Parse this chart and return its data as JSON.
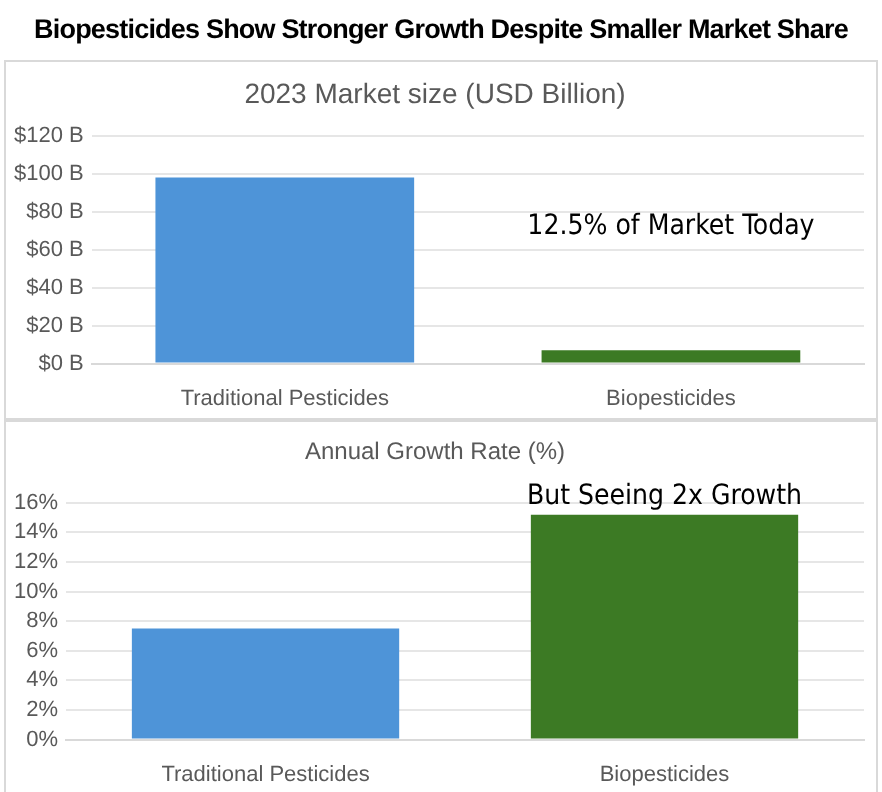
{
  "chart_data": [
    {
      "type": "bar",
      "title": "Biopesticides Show Stronger Growth Despite Smaller Market Share",
      "subtitle": "2023 Market size (USD Billion)",
      "categories": [
        "Traditional Pesticides",
        "Biopesticides"
      ],
      "values": [
        98,
        7
      ],
      "colors": [
        "#4e94d8",
        "#3c7a24"
      ],
      "ylim": [
        0,
        120
      ],
      "yticks": [
        {
          "value": 0,
          "label": "$0 B"
        },
        {
          "value": 20,
          "label": "$20 B"
        },
        {
          "value": 40,
          "label": "$40 B"
        },
        {
          "value": 60,
          "label": "$60 B"
        },
        {
          "value": 80,
          "label": "$80 B"
        },
        {
          "value": 100,
          "label": "$100 B"
        },
        {
          "value": 120,
          "label": "$120 B"
        }
      ],
      "grid": "y",
      "legend": false,
      "annotations": [
        "12.5% of Market Today"
      ]
    },
    {
      "type": "bar",
      "title": "Annual Growth Rate (%)",
      "categories": [
        "Traditional Pesticides",
        "Biopesticides"
      ],
      "values": [
        7.5,
        15.2
      ],
      "colors": [
        "#4e94d8",
        "#3c7a24"
      ],
      "ylim": [
        0,
        16
      ],
      "yticks": [
        {
          "value": 0,
          "label": "0%"
        },
        {
          "value": 2,
          "label": "2%"
        },
        {
          "value": 4,
          "label": "4%"
        },
        {
          "value": 6,
          "label": "6%"
        },
        {
          "value": 8,
          "label": "8%"
        },
        {
          "value": 10,
          "label": "10%"
        },
        {
          "value": 12,
          "label": "12%"
        },
        {
          "value": 14,
          "label": "14%"
        },
        {
          "value": 16,
          "label": "16%"
        }
      ],
      "grid": "y",
      "legend": false,
      "annotations": [
        {
          "text": "But Seeing 2x Growth",
          "x": "Biopesticides",
          "y": 15.2
        }
      ]
    }
  ]
}
